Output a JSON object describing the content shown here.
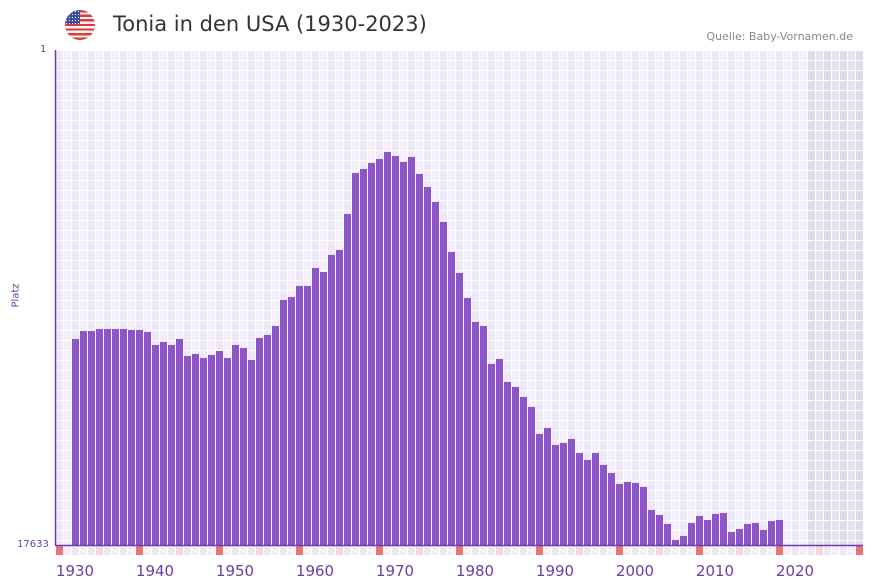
{
  "header": {
    "title": "Tonia in den USA (1930-2023)",
    "source": "Quelle: Baby-Vornamen.de",
    "flag_icon": "usa-flag-icon"
  },
  "colors": {
    "bar": "#8e55c8",
    "axis": "#6a3fa5",
    "decade_marker": "#e8747c",
    "half_decade_marker": "#f5d5e0"
  },
  "chart_data": {
    "type": "bar",
    "title": "Tonia in den USA (1930-2023)",
    "xlabel": "",
    "ylabel": "Platz",
    "y_reversed": true,
    "ylim": [
      1,
      17633
    ],
    "y_ticks": [
      "1",
      "17633"
    ],
    "x_range": [
      1928,
      2028
    ],
    "x_ticks": [
      "1930",
      "1940",
      "1950",
      "1960",
      "1970",
      "1980",
      "1990",
      "2000",
      "2010",
      "2020"
    ],
    "shaded_from_year": 2022,
    "grid": true,
    "x": [
      1930,
      1931,
      1932,
      1933,
      1934,
      1935,
      1936,
      1937,
      1938,
      1939,
      1940,
      1941,
      1942,
      1943,
      1944,
      1945,
      1946,
      1947,
      1948,
      1949,
      1950,
      1951,
      1952,
      1953,
      1954,
      1955,
      1956,
      1957,
      1958,
      1959,
      1960,
      1961,
      1962,
      1963,
      1964,
      1965,
      1966,
      1967,
      1968,
      1969,
      1970,
      1971,
      1972,
      1973,
      1974,
      1975,
      1976,
      1977,
      1978,
      1979,
      1980,
      1981,
      1982,
      1983,
      1984,
      1985,
      1986,
      1987,
      1988,
      1989,
      1990,
      1991,
      1992,
      1993,
      1994,
      1995,
      1996,
      1997,
      1998,
      1999,
      2000,
      2001,
      2002,
      2003,
      2004,
      2005,
      2006,
      2007,
      2008,
      2009,
      2010,
      2011,
      2012,
      2013,
      2014,
      2015,
      2016,
      2017,
      2018
    ],
    "values": [
      10294,
      10009,
      10009,
      9938,
      9938,
      9938,
      9938,
      9974,
      9974,
      10045,
      10508,
      10401,
      10508,
      10294,
      10900,
      10829,
      10971,
      10864,
      10722,
      10971,
      10508,
      10615,
      11042,
      10259,
      10152,
      9831,
      8905,
      8798,
      8406,
      8406,
      7765,
      7908,
      7302,
      7124,
      5842,
      4381,
      4239,
      4025,
      3883,
      3633,
      3776,
      3989,
      3811,
      4417,
      4880,
      5414,
      6127,
      7195,
      7943,
      8834,
      9689,
      9831,
      11185,
      11007,
      11826,
      12004,
      12360,
      12716,
      13678,
      13464,
      14070,
      13999,
      13856,
      14355,
      14604,
      14355,
      14782,
      15067,
      15459,
      15388,
      15424,
      15566,
      16385,
      16563,
      16884,
      17454,
      17311,
      16849,
      16599,
      16741,
      16528,
      16492,
      17169,
      17062,
      16884,
      16849,
      17098,
      16777,
      16741
    ]
  }
}
